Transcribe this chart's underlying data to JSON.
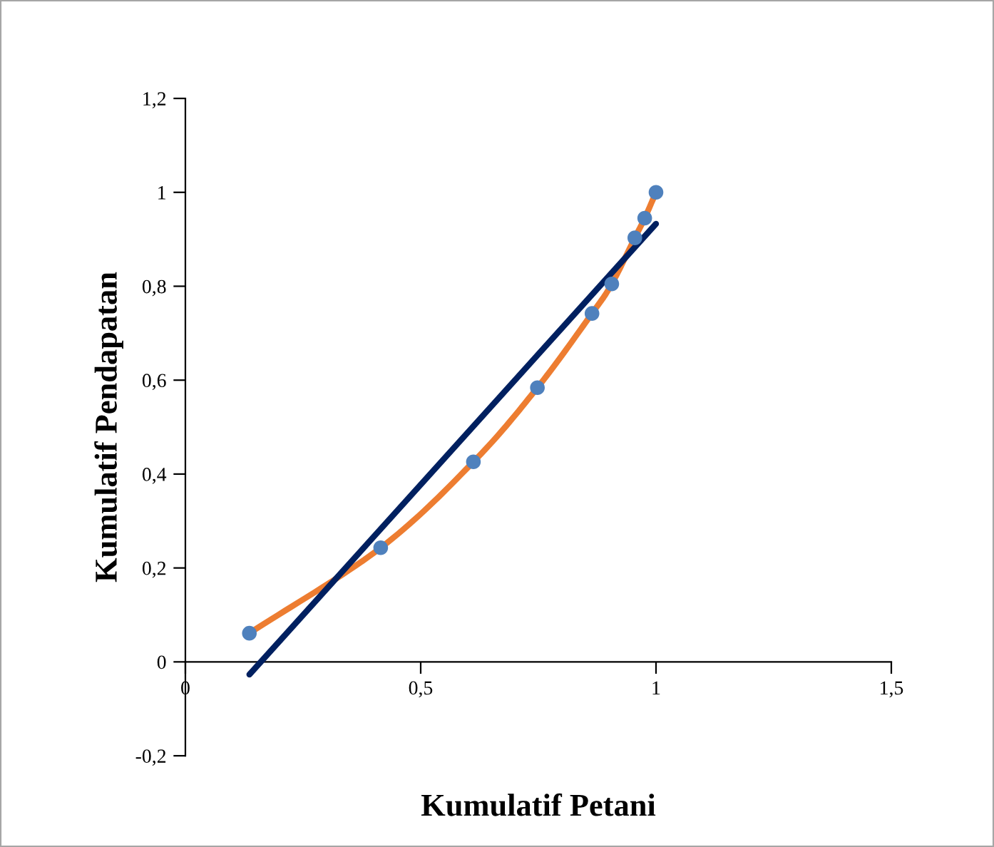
{
  "chart_data": {
    "type": "scatter",
    "xlabel": "Kumulatif Petani",
    "ylabel": "Kumulatif Pendapatan",
    "xlim": [
      0,
      1.5
    ],
    "xticks": [
      0,
      {
        "value": 0.5,
        "label": "0,5"
      },
      1,
      {
        "value": 1.5,
        "label": "1,5"
      }
    ],
    "ylim": [
      -0.2,
      1.2
    ],
    "yticks": [
      {
        "value": -0.2,
        "label": "-0,2"
      },
      0,
      {
        "value": 0.2,
        "label": "0,2"
      },
      {
        "value": 0.4,
        "label": "0,4"
      },
      {
        "value": 0.6,
        "label": "0,6"
      },
      {
        "value": 0.8,
        "label": "0,8"
      },
      1,
      {
        "value": 1.2,
        "label": "1,2"
      }
    ],
    "grid": false,
    "legend": false,
    "series": [
      {
        "type": "line",
        "color": "#ed7d31",
        "marker": "none",
        "x": [
          0.136,
          0.415,
          0.612,
          0.748,
          0.864,
          0.906,
          0.955,
          0.976,
          1.0
        ],
        "values": [
          0.061,
          0.243,
          0.426,
          0.584,
          0.742,
          0.805,
          0.903,
          0.945,
          1.0
        ]
      },
      {
        "color": "#4f81bd",
        "marker": "circle",
        "x": [
          0.136,
          0.415,
          0.612,
          0.748,
          0.864,
          0.906,
          0.955,
          0.976,
          1.0
        ],
        "values": [
          0.061,
          0.243,
          0.426,
          0.584,
          0.742,
          0.805,
          0.903,
          0.945,
          1.0
        ]
      },
      {
        "type": "line",
        "color": "#002060",
        "marker": "none",
        "x": [
          0.136,
          1.0
        ],
        "values": [
          -0.027,
          0.933
        ]
      }
    ]
  }
}
